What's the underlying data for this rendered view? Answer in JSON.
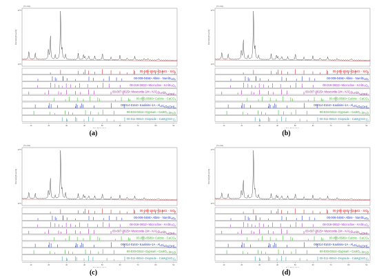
{
  "chart_data": [
    {
      "type": "line",
      "panel_label": "(a)",
      "y_unit": "[Y-Unit]",
      "y_axis_label": "Intensity[Counts]",
      "x_axis_label": "Two-Theta (deg)",
      "y_tick_labels": [
        "10^3",
        "10^2"
      ],
      "x_tick_labels": [
        "10",
        "20",
        "30",
        "40",
        "50",
        "60",
        "70",
        "80",
        "90"
      ],
      "xlim": [
        5,
        92
      ],
      "pattern": {
        "baseline": 6,
        "peaks": [
          [
            8.8,
            18
          ],
          [
            12.4,
            14
          ],
          [
            19.8,
            22
          ],
          [
            20.9,
            48
          ],
          [
            23.6,
            10
          ],
          [
            26.6,
            100
          ],
          [
            27.5,
            22
          ],
          [
            29.4,
            12
          ],
          [
            36.5,
            14
          ],
          [
            39.5,
            12
          ],
          [
            40.3,
            8
          ],
          [
            42.4,
            10
          ],
          [
            45.8,
            9
          ],
          [
            50.1,
            14
          ],
          [
            54.9,
            7
          ],
          [
            59.9,
            10
          ],
          [
            64.0,
            6
          ],
          [
            68.2,
            9
          ],
          [
            73.5,
            5
          ],
          [
            75.7,
            5
          ],
          [
            81.5,
            5
          ]
        ]
      },
      "references": [
        {
          "label": "00-046-1045> Quartz - SiO2",
          "color": "#cc2222",
          "lines": [
            20.9,
            26.6,
            36.5,
            39.5,
            40.3,
            42.4,
            45.8,
            50.1,
            54.9,
            59.9,
            64.0,
            67.7,
            68.2,
            73.5,
            75.7,
            77.7,
            79.9,
            81.5,
            83.8,
            90.8
          ]
        },
        {
          "label": "00-009-0466> Albite - NaAlSi3O8",
          "color": "#2233cc",
          "lines": [
            13.9,
            22.0,
            23.6,
            24.3,
            27.9,
            28.0,
            30.2,
            35.0,
            42.5,
            45.1,
            50.7,
            53.9,
            58.0,
            61.0
          ]
        },
        {
          "label": "00-019-0932> Microcline - KAlSi3O8",
          "color": "#9933cc",
          "lines": [
            13.7,
            21.0,
            23.5,
            25.6,
            27.5,
            29.8,
            32.3,
            35.0,
            37.3,
            41.8,
            47.3,
            50.5,
            54.0,
            60.2
          ]
        },
        {
          "label": "00-007-0025> Muscovite-1M - KAl2Si3AlO10(OH)2",
          "color": "#aa22aa",
          "lines": [
            8.8,
            17.8,
            19.8,
            25.5,
            26.8,
            29.9,
            34.9,
            37.8,
            42.4,
            45.4,
            54.9,
            61.8
          ]
        },
        {
          "label": "00-005-0586> Calcite - CaCO3",
          "color": "#33bb22",
          "lines": [
            23.1,
            29.4,
            31.5,
            36.0,
            39.4,
            43.2,
            47.5,
            48.5,
            57.4,
            60.7,
            64.7,
            65.6,
            72.9
          ]
        },
        {
          "label": "00-014-0164> Kaolinite-1A - Al2Si2O5(OH)4",
          "color": "#2233bb",
          "lines": [
            12.4,
            19.9,
            20.4,
            21.3,
            24.9,
            34.9,
            35.4,
            36.0,
            37.7,
            38.4,
            39.3,
            45.4,
            55.1,
            62.3
          ]
        },
        {
          "label": "00-033-0311> Gypsum - CaSO4·2H2O",
          "color": "#33aa22",
          "lines": [
            11.6,
            20.7,
            23.4,
            29.1,
            31.1,
            33.4,
            40.6,
            43.4,
            47.9,
            50.3,
            56.7
          ]
        },
        {
          "label": "00-011-0654> Diopside - CaMg(SiO3)2",
          "color": "#3399aa",
          "lines": [
            27.5,
            29.9,
            30.3,
            35.0,
            35.6,
            39.8,
            42.3,
            44.8,
            52.6,
            56.7,
            62.6
          ]
        }
      ]
    },
    {
      "type": "line",
      "panel_label": "(b)",
      "y_unit": "[Y-Unit]",
      "y_axis_label": "Intensity[Counts]",
      "x_axis_label": "Two-Theta (deg)",
      "y_tick_labels": [
        "10^3",
        "10^2"
      ],
      "x_tick_labels": [
        "10",
        "20",
        "30",
        "40",
        "50",
        "60",
        "70",
        "80",
        "90"
      ],
      "xlim": [
        5,
        92
      ],
      "pattern": {
        "baseline": 6,
        "peaks": [
          [
            8.8,
            16
          ],
          [
            12.4,
            12
          ],
          [
            19.8,
            20
          ],
          [
            20.9,
            40
          ],
          [
            23.6,
            9
          ],
          [
            26.6,
            100
          ],
          [
            27.5,
            26
          ],
          [
            29.4,
            10
          ],
          [
            36.5,
            13
          ],
          [
            39.5,
            11
          ],
          [
            40.3,
            8
          ],
          [
            42.4,
            9
          ],
          [
            45.8,
            8
          ],
          [
            50.1,
            13
          ],
          [
            54.9,
            7
          ],
          [
            59.9,
            9
          ],
          [
            64.0,
            6
          ],
          [
            68.2,
            8
          ],
          [
            73.5,
            5
          ],
          [
            81.5,
            5
          ]
        ]
      },
      "references": [
        {
          "label": "00-046-1045> Quartz - SiO2",
          "color": "#cc2222",
          "lines": [
            20.9,
            26.6,
            36.5,
            39.5,
            40.3,
            42.4,
            45.8,
            50.1,
            54.9,
            59.9,
            64.0,
            67.7,
            68.2,
            73.5,
            75.7,
            77.7,
            79.9,
            81.5,
            83.8,
            90.8
          ]
        },
        {
          "label": "00-009-0466> Albite - NaAlSi3O8",
          "color": "#2233cc",
          "lines": [
            13.9,
            22.0,
            23.6,
            24.3,
            27.9,
            28.0,
            30.2,
            35.0,
            42.5,
            45.1,
            50.7,
            53.9,
            58.0,
            61.0
          ]
        },
        {
          "label": "00-019-0932> Microcline - KAlSi3O8",
          "color": "#9933cc",
          "lines": [
            13.7,
            21.0,
            23.5,
            25.6,
            27.5,
            29.8,
            32.3,
            35.0,
            37.3,
            41.8,
            47.3,
            50.5,
            54.0,
            60.2
          ]
        },
        {
          "label": "00-007-0025> Muscovite-1M - KAl2Si3AlO10(OH)2",
          "color": "#aa22aa",
          "lines": [
            8.8,
            17.8,
            19.8,
            25.5,
            26.8,
            29.9,
            34.9,
            37.8,
            42.4,
            45.4,
            54.9,
            61.8
          ]
        },
        {
          "label": "00-005-0586> Calcite - CaCO3",
          "color": "#33bb22",
          "lines": [
            23.1,
            29.4,
            31.5,
            36.0,
            39.4,
            43.2,
            47.5,
            48.5,
            57.4,
            60.7,
            64.7,
            65.6,
            72.9
          ]
        },
        {
          "label": "00-014-0164> Kaolinite-1A - Al2Si2O5(OH)4",
          "color": "#2233bb",
          "lines": [
            12.4,
            19.9,
            20.4,
            21.3,
            24.9,
            34.9,
            35.4,
            36.0,
            37.7,
            38.4,
            39.3,
            45.4,
            55.1,
            62.3
          ]
        },
        {
          "label": "00-033-0311> Gypsum - CaSO4·2H2O",
          "color": "#33aa22",
          "lines": [
            11.6,
            20.7,
            23.4,
            29.1,
            31.1,
            33.4,
            40.6,
            43.4,
            47.9,
            50.3,
            56.7
          ]
        },
        {
          "label": "00-011-0654> Diopside - CaMg(SiO3)2",
          "color": "#3399aa",
          "lines": [
            27.5,
            29.9,
            30.3,
            35.0,
            35.6,
            39.8,
            42.3,
            44.8,
            52.6,
            56.7,
            62.6
          ]
        }
      ]
    },
    {
      "type": "line",
      "panel_label": "(c)",
      "y_unit": "[Y-Unit]",
      "y_axis_label": "Intensity[Counts]",
      "x_axis_label": "Two-Theta (deg)",
      "y_tick_labels": [
        "10^3",
        "10^2"
      ],
      "x_tick_labels": [
        "10",
        "20",
        "30",
        "40",
        "50",
        "60",
        "70",
        "80",
        "90"
      ],
      "xlim": [
        5,
        92
      ],
      "pattern": {
        "baseline": 6,
        "peaks": [
          [
            8.8,
            15
          ],
          [
            12.4,
            12
          ],
          [
            19.8,
            18
          ],
          [
            20.9,
            42
          ],
          [
            23.6,
            8
          ],
          [
            26.6,
            100
          ],
          [
            27.5,
            20
          ],
          [
            29.4,
            14
          ],
          [
            36.5,
            12
          ],
          [
            39.5,
            11
          ],
          [
            40.3,
            7
          ],
          [
            42.4,
            9
          ],
          [
            45.8,
            8
          ],
          [
            50.1,
            12
          ],
          [
            54.9,
            6
          ],
          [
            59.9,
            9
          ],
          [
            64.0,
            6
          ],
          [
            68.2,
            8
          ],
          [
            73.5,
            5
          ],
          [
            81.5,
            4
          ]
        ]
      },
      "references": [
        {
          "label": "00-046-1045> Quartz - SiO2",
          "color": "#cc2222",
          "lines": [
            20.9,
            26.6,
            36.5,
            39.5,
            40.3,
            42.4,
            45.8,
            50.1,
            54.9,
            59.9,
            64.0,
            67.7,
            68.2,
            73.5,
            75.7,
            77.7,
            79.9,
            81.5,
            83.8,
            90.8
          ]
        },
        {
          "label": "00-009-0466> Albite - NaAlSi3O8",
          "color": "#2233cc",
          "lines": [
            13.9,
            22.0,
            23.6,
            24.3,
            27.9,
            28.0,
            30.2,
            35.0,
            42.5,
            45.1,
            50.7,
            53.9,
            58.0,
            61.0
          ]
        },
        {
          "label": "00-019-0932> Microcline - KAlSi3O8",
          "color": "#9933cc",
          "lines": [
            13.7,
            21.0,
            23.5,
            25.6,
            27.5,
            29.8,
            32.3,
            35.0,
            37.3,
            41.8,
            47.3,
            50.5,
            54.0,
            60.2
          ]
        },
        {
          "label": "00-007-0025> Muscovite-1M - KAl2Si3AlO10(OH)2",
          "color": "#aa22aa",
          "lines": [
            8.8,
            17.8,
            19.8,
            25.5,
            26.8,
            29.9,
            34.9,
            37.8,
            42.4,
            45.4,
            54.9,
            61.8
          ]
        },
        {
          "label": "00-005-0586> Calcite - CaCO3",
          "color": "#33bb22",
          "lines": [
            23.1,
            29.4,
            31.5,
            36.0,
            39.4,
            43.2,
            47.5,
            48.5,
            57.4,
            60.7,
            64.7,
            65.6,
            72.9
          ]
        },
        {
          "label": "00-014-0164> Kaolinite-1A - Al2Si2O5(OH)4",
          "color": "#2233bb",
          "lines": [
            12.4,
            19.9,
            20.4,
            21.3,
            24.9,
            34.9,
            35.4,
            36.0,
            37.7,
            38.4,
            39.3,
            45.4,
            55.1,
            62.3
          ]
        },
        {
          "label": "00-033-0311> Gypsum - CaSO4·2H2O",
          "color": "#33aa22",
          "lines": [
            11.6,
            20.7,
            23.4,
            29.1,
            31.1,
            33.4,
            40.6,
            43.4,
            47.9,
            50.3,
            56.7
          ]
        },
        {
          "label": "00-011-0654> Diopside - CaMg(SiO3)2",
          "color": "#3399aa",
          "lines": [
            27.5,
            29.9,
            30.3,
            35.0,
            35.6,
            39.8,
            42.3,
            44.8,
            52.6,
            56.7,
            62.6
          ]
        }
      ]
    },
    {
      "type": "line",
      "panel_label": "(d)",
      "y_unit": "[Y-Unit]",
      "y_axis_label": "Intensity[Counts]",
      "x_axis_label": "Two-Theta (deg)",
      "y_tick_labels": [
        "10^3",
        "10^2"
      ],
      "x_tick_labels": [
        "10",
        "20",
        "30",
        "40",
        "50",
        "60",
        "70",
        "80",
        "90"
      ],
      "xlim": [
        5,
        92
      ],
      "pattern": {
        "baseline": 6,
        "peaks": [
          [
            8.8,
            14
          ],
          [
            12.4,
            11
          ],
          [
            19.8,
            18
          ],
          [
            20.9,
            38
          ],
          [
            23.6,
            8
          ],
          [
            26.6,
            100
          ],
          [
            27.5,
            18
          ],
          [
            29.4,
            10
          ],
          [
            36.5,
            12
          ],
          [
            39.5,
            10
          ],
          [
            40.3,
            7
          ],
          [
            42.4,
            9
          ],
          [
            45.8,
            8
          ],
          [
            50.1,
            12
          ],
          [
            54.9,
            6
          ],
          [
            59.9,
            9
          ],
          [
            64.0,
            5
          ],
          [
            68.2,
            8
          ],
          [
            73.5,
            5
          ],
          [
            81.5,
            4
          ]
        ]
      },
      "references": [
        {
          "label": "00-046-1045> Quartz - SiO2",
          "color": "#cc2222",
          "lines": [
            20.9,
            26.6,
            36.5,
            39.5,
            40.3,
            42.4,
            45.8,
            50.1,
            54.9,
            59.9,
            64.0,
            67.7,
            68.2,
            73.5,
            75.7,
            77.7,
            79.9,
            81.5,
            83.8,
            90.8
          ]
        },
        {
          "label": "00-009-0466> Albite - NaAlSi3O8",
          "color": "#2233cc",
          "lines": [
            13.9,
            22.0,
            23.6,
            24.3,
            27.9,
            28.0,
            30.2,
            35.0,
            42.5,
            45.1,
            50.7,
            53.9,
            58.0,
            61.0
          ]
        },
        {
          "label": "00-019-0932> Microcline - KAlSi3O8",
          "color": "#9933cc",
          "lines": [
            13.7,
            21.0,
            23.5,
            25.6,
            27.5,
            29.8,
            32.3,
            35.0,
            37.3,
            41.8,
            47.3,
            50.5,
            54.0,
            60.2
          ]
        },
        {
          "label": "00-007-0025> Muscovite-1M - KAl2Si3AlO10(OH)2",
          "color": "#aa22aa",
          "lines": [
            8.8,
            17.8,
            19.8,
            25.5,
            26.8,
            29.9,
            34.9,
            37.8,
            42.4,
            45.4,
            54.9,
            61.8
          ]
        },
        {
          "label": "00-005-0586> Calcite - CaCO3",
          "color": "#33bb22",
          "lines": [
            23.1,
            29.4,
            31.5,
            36.0,
            39.4,
            43.2,
            47.5,
            48.5,
            57.4,
            60.7,
            64.7,
            65.6,
            72.9
          ]
        },
        {
          "label": "00-014-0164> Kaolinite-1A - Al2Si2O5(OH)4",
          "color": "#2233bb",
          "lines": [
            12.4,
            19.9,
            20.4,
            21.3,
            24.9,
            34.9,
            35.4,
            36.0,
            37.7,
            38.4,
            39.3,
            45.4,
            55.1,
            62.3
          ]
        },
        {
          "label": "00-033-0311> Gypsum - CaSO4·2H2O",
          "color": "#33aa22",
          "lines": [
            11.6,
            20.7,
            23.4,
            29.1,
            31.1,
            33.4,
            40.6,
            43.4,
            47.9,
            50.3,
            56.7
          ]
        },
        {
          "label": "00-011-0654> Diopside - CaMg(SiO3)2",
          "color": "#3399aa",
          "lines": [
            27.5,
            29.9,
            30.3,
            35.0,
            35.6,
            39.8,
            42.3,
            44.8,
            52.6,
            56.7,
            62.6
          ]
        }
      ]
    }
  ]
}
